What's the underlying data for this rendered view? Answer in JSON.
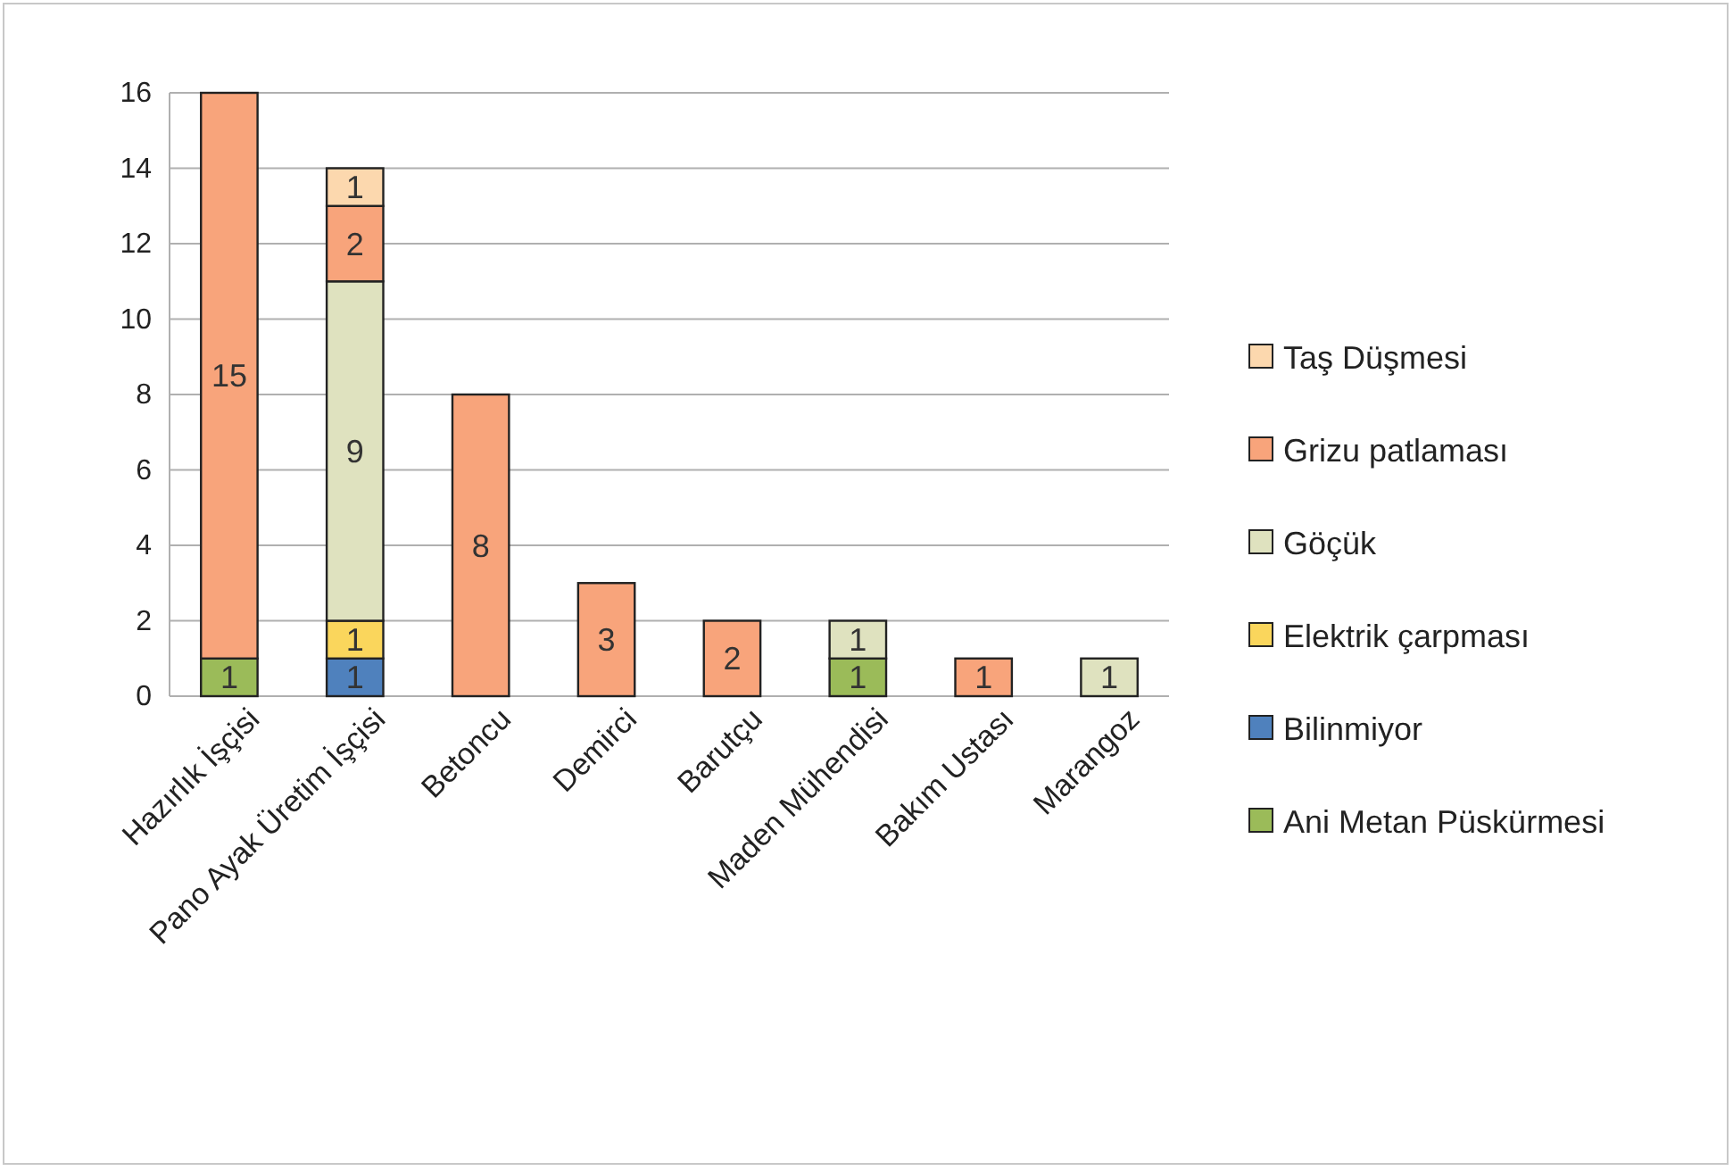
{
  "chart_data": {
    "type": "bar",
    "stacked": true,
    "categories": [
      "Hazırlık İşçisi",
      "Pano Ayak Üretim İşçisi",
      "Betoncu",
      "Demirci",
      "Barutçu",
      "Maden Mühendisi",
      "Bakım Ustası",
      "Marangoz"
    ],
    "series": [
      {
        "name": "Ani Metan Püskürmesi",
        "color": "#9bbb59",
        "values": [
          1,
          null,
          null,
          null,
          null,
          1,
          null,
          null
        ]
      },
      {
        "name": "Bilinmiyor",
        "color": "#4f81bd",
        "values": [
          null,
          1,
          null,
          null,
          null,
          null,
          null,
          null
        ]
      },
      {
        "name": "Elektrik çarpması",
        "color": "#fad65c",
        "values": [
          null,
          1,
          null,
          null,
          null,
          null,
          null,
          null
        ]
      },
      {
        "name": "Göçük",
        "color": "#dfe2bf",
        "values": [
          null,
          9,
          null,
          null,
          null,
          1,
          null,
          1
        ]
      },
      {
        "name": "Grizu patlaması",
        "color": "#f8a47b",
        "values": [
          15,
          2,
          8,
          3,
          2,
          null,
          1,
          null
        ]
      },
      {
        "name": "Taş Düşmesi",
        "color": "#fcd8ae",
        "values": [
          null,
          1,
          null,
          null,
          null,
          null,
          null,
          null
        ]
      }
    ],
    "ylim": [
      0,
      16
    ],
    "yticks": [
      0,
      2,
      4,
      6,
      8,
      10,
      12,
      14,
      16
    ],
    "grid": "y",
    "legend": "right",
    "data_labels": true
  }
}
